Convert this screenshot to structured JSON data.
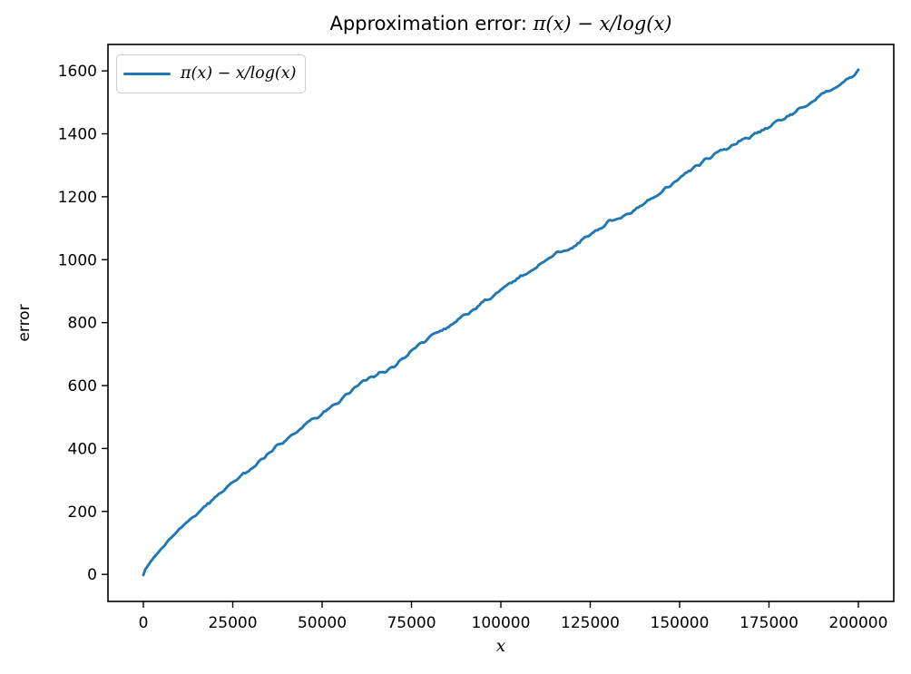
{
  "figure": {
    "title": {
      "prefix": "Approximation error: ",
      "math": "π(x) − x/log(x)"
    },
    "legend": {
      "label": "π(x) − x/log(x)"
    },
    "axes": {
      "x_label": "x",
      "y_label": "error",
      "x_tick_labels": [
        "0",
        "25000",
        "50000",
        "75000",
        "100000",
        "125000",
        "150000",
        "175000",
        "200000"
      ],
      "y_tick_labels": [
        "0",
        "200",
        "400",
        "600",
        "800",
        "1000",
        "1200",
        "1400",
        "1600"
      ]
    },
    "colors": {
      "line": "#1f77b4",
      "spine": "#000000",
      "text": "#000000",
      "legend_border": "#cccccc",
      "background": "#ffffff"
    }
  },
  "chart_data": {
    "type": "line",
    "title": "Approximation error: π(x) − x/log(x)",
    "xlabel": "x",
    "ylabel": "error",
    "grid": false,
    "legend_position": "upper left",
    "x_ticks": [
      0,
      25000,
      50000,
      75000,
      100000,
      125000,
      150000,
      175000,
      200000
    ],
    "y_ticks": [
      0,
      200,
      400,
      600,
      800,
      1000,
      1200,
      1400,
      1600
    ],
    "xlim": [
      -9900,
      209900
    ],
    "ylim": [
      -86,
      1684
    ],
    "series": [
      {
        "name": "π(x) − x/log(x)",
        "color": "#1f77b4",
        "points": [
          [
            2,
            -2
          ],
          [
            500,
            15
          ],
          [
            1000,
            23
          ],
          [
            2000,
            40
          ],
          [
            3000,
            55
          ],
          [
            4000,
            68
          ],
          [
            5000,
            82
          ],
          [
            6000,
            93
          ],
          [
            7000,
            109
          ],
          [
            8000,
            117
          ],
          [
            9000,
            128
          ],
          [
            10000,
            143
          ],
          [
            15000,
            194
          ],
          [
            20000,
            243
          ],
          [
            25000,
            293
          ],
          [
            30000,
            335
          ],
          [
            35000,
            387
          ],
          [
            40000,
            428
          ],
          [
            45000,
            475
          ],
          [
            50000,
            512
          ],
          [
            55000,
            550
          ],
          [
            60000,
            604
          ],
          [
            65000,
            635
          ],
          [
            70000,
            660
          ],
          [
            75000,
            712
          ],
          [
            80000,
            751
          ],
          [
            85000,
            785
          ],
          [
            90000,
            824
          ],
          [
            95000,
            864
          ],
          [
            100000,
            906
          ],
          [
            105000,
            942
          ],
          [
            110000,
            977
          ],
          [
            115000,
            1020
          ],
          [
            120000,
            1041
          ],
          [
            125000,
            1083
          ],
          [
            130000,
            1119
          ],
          [
            135000,
            1142
          ],
          [
            140000,
            1180
          ],
          [
            145000,
            1215
          ],
          [
            150000,
            1262
          ],
          [
            155000,
            1300
          ],
          [
            160000,
            1335
          ],
          [
            165000,
            1365
          ],
          [
            170000,
            1395
          ],
          [
            175000,
            1420
          ],
          [
            180000,
            1455
          ],
          [
            185000,
            1490
          ],
          [
            190000,
            1525
          ],
          [
            195000,
            1560
          ],
          [
            200000,
            1599
          ]
        ]
      }
    ]
  }
}
